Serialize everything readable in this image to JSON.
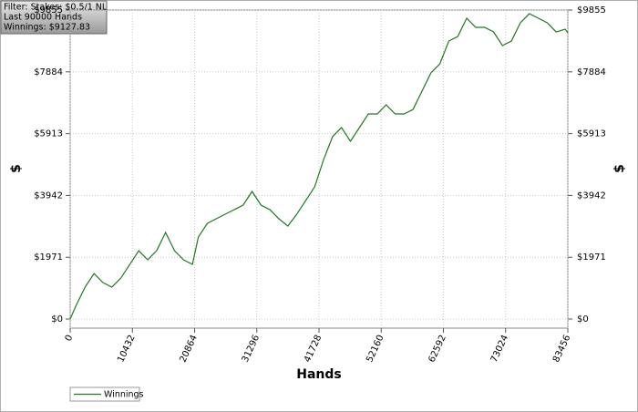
{
  "chart_data": {
    "type": "line",
    "annotations": [
      "Filter: Stakes: $0.5/1 NL",
      "Last  90000 Hands",
      "Winnings: $9127.83"
    ],
    "x_label": "Hands",
    "y_label": "$",
    "x": [
      0,
      1000,
      2500,
      4000,
      5500,
      7000,
      8500,
      10000,
      11500,
      13000,
      14500,
      16000,
      17500,
      19000,
      20500,
      21500,
      23000,
      24500,
      26000,
      27500,
      29000,
      30500,
      32000,
      33500,
      35000,
      36500,
      38000,
      39500,
      41000,
      42500,
      44000,
      45500,
      47000,
      48500,
      50000,
      51500,
      53000,
      54500,
      56000,
      57500,
      59000,
      60500,
      62000,
      63500,
      65000,
      66500,
      68000,
      69500,
      71000,
      72500,
      74000,
      75500,
      77000,
      78500,
      80000,
      81500,
      83000,
      83456
    ],
    "series": [
      {
        "name": "Winnings",
        "color": "#1e7a1e",
        "values": [
          0,
          436,
          1017,
          1453,
          1163,
          1017,
          1308,
          1744,
          2180,
          1890,
          2180,
          2762,
          2180,
          1890,
          1744,
          2616,
          3052,
          3198,
          3343,
          3488,
          3634,
          4070,
          3634,
          3488,
          3198,
          2965,
          3343,
          3779,
          4215,
          5087,
          5814,
          6105,
          5669,
          6105,
          6541,
          6541,
          6832,
          6541,
          6541,
          6686,
          7268,
          7849,
          8140,
          8866,
          9011,
          9593,
          9302,
          9302,
          9157,
          8721,
          8866,
          9448,
          9738,
          9593,
          9448,
          9157,
          9244,
          9128
        ]
      }
    ],
    "xlim": [
      0,
      83456
    ],
    "xticks": [
      0,
      10432,
      20864,
      31296,
      41728,
      52160,
      62592,
      73024,
      83456
    ],
    "ylim": [
      -290,
      9855
    ],
    "yticks": [
      {
        "value": 0,
        "label": "$0"
      },
      {
        "value": 1971,
        "label": "$1971"
      },
      {
        "value": 3942,
        "label": "$3942"
      },
      {
        "value": 5913,
        "label": "$5913"
      },
      {
        "value": 7884,
        "label": "$7884"
      },
      {
        "value": 9855,
        "label": "$9855"
      }
    ],
    "grid": true
  }
}
